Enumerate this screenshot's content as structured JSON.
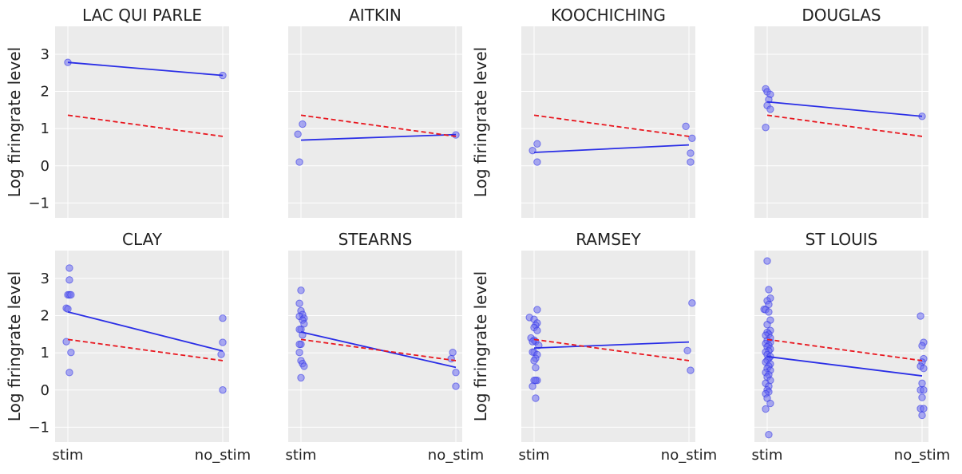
{
  "colors": {
    "panel_bg": "#ebebeb",
    "grid": "#ffffff",
    "fit_line": "#2a2ee6",
    "points": "#6b6bf0",
    "pooled_line": "#e8171f",
    "text": "#222222"
  },
  "chart_data": [
    {
      "type": "scatter",
      "title": "LAC QUI PARLE",
      "ylabel": "Log firingrate level",
      "categories": [
        "stim",
        "no_stim"
      ],
      "ylim": [
        -1.4,
        3.75
      ],
      "yticks": [
        -1,
        0,
        1,
        2,
        3
      ],
      "grid": true,
      "show_ylabel": true,
      "show_yticks": true,
      "show_xticks": false,
      "points": [
        {
          "x": 0,
          "y": 2.78
        },
        {
          "x": 1,
          "y": 2.43
        }
      ],
      "fit_line": [
        2.78,
        2.43
      ],
      "pooled_line": [
        1.36,
        0.79
      ]
    },
    {
      "type": "scatter",
      "title": "AITKIN",
      "ylabel": "",
      "categories": [
        "stim",
        "no_stim"
      ],
      "ylim": [
        -1.4,
        3.75
      ],
      "yticks": [
        -1,
        0,
        1,
        2,
        3
      ],
      "grid": true,
      "show_ylabel": false,
      "show_yticks": false,
      "show_xticks": false,
      "points": [
        {
          "x": -0.02,
          "y": 0.85
        },
        {
          "x": 0.01,
          "y": 1.12
        },
        {
          "x": -0.01,
          "y": 0.1
        },
        {
          "x": 1.0,
          "y": 0.83
        }
      ],
      "fit_line": [
        0.69,
        0.84
      ],
      "pooled_line": [
        1.36,
        0.79
      ]
    },
    {
      "type": "scatter",
      "title": "KOOCHICHING",
      "ylabel": "Log firingrate level",
      "categories": [
        "stim",
        "no_stim"
      ],
      "ylim": [
        -1.4,
        3.75
      ],
      "yticks": [
        -1,
        0,
        1,
        2,
        3
      ],
      "grid": true,
      "show_ylabel": true,
      "show_yticks": false,
      "show_xticks": false,
      "points": [
        {
          "x": 0.02,
          "y": 0.59
        },
        {
          "x": -0.01,
          "y": 0.41
        },
        {
          "x": 0.02,
          "y": 0.1
        },
        {
          "x": 0.98,
          "y": 1.06
        },
        {
          "x": 1.02,
          "y": 0.74
        },
        {
          "x": 1.01,
          "y": 0.34
        },
        {
          "x": 1.01,
          "y": 0.1
        }
      ],
      "fit_line": [
        0.36,
        0.56
      ],
      "pooled_line": [
        1.36,
        0.79
      ]
    },
    {
      "type": "scatter",
      "title": "DOUGLAS",
      "ylabel": "",
      "categories": [
        "stim",
        "no_stim"
      ],
      "ylim": [
        -1.4,
        3.75
      ],
      "yticks": [
        -1,
        0,
        1,
        2,
        3
      ],
      "grid": true,
      "show_ylabel": false,
      "show_yticks": false,
      "show_xticks": false,
      "points": [
        {
          "x": -0.01,
          "y": 2.07
        },
        {
          "x": 0.0,
          "y": 1.99
        },
        {
          "x": 0.02,
          "y": 1.92
        },
        {
          "x": 0.01,
          "y": 1.78
        },
        {
          "x": 0.0,
          "y": 1.62
        },
        {
          "x": 0.02,
          "y": 1.52
        },
        {
          "x": -0.01,
          "y": 1.03
        },
        {
          "x": 1.0,
          "y": 1.33
        }
      ],
      "fit_line": [
        1.72,
        1.33
      ],
      "pooled_line": [
        1.36,
        0.79
      ]
    },
    {
      "type": "scatter",
      "title": "CLAY",
      "ylabel": "Log firingrate level",
      "categories": [
        "stim",
        "no_stim"
      ],
      "ylim": [
        -1.4,
        3.75
      ],
      "yticks": [
        -1,
        0,
        1,
        2,
        3
      ],
      "grid": true,
      "show_ylabel": true,
      "show_yticks": true,
      "show_xticks": true,
      "points": [
        {
          "x": 0.01,
          "y": 3.28
        },
        {
          "x": 0.01,
          "y": 2.96
        },
        {
          "x": 0.0,
          "y": 2.56
        },
        {
          "x": 0.01,
          "y": 2.56
        },
        {
          "x": 0.02,
          "y": 2.56
        },
        {
          "x": -0.01,
          "y": 2.2
        },
        {
          "x": 0.0,
          "y": 2.18
        },
        {
          "x": -0.01,
          "y": 1.3
        },
        {
          "x": 0.02,
          "y": 1.01
        },
        {
          "x": 0.01,
          "y": 0.47
        },
        {
          "x": 1.0,
          "y": 1.93
        },
        {
          "x": 1.0,
          "y": 1.28
        },
        {
          "x": 0.99,
          "y": 0.96
        },
        {
          "x": 1.0,
          "y": 0.0
        }
      ],
      "fit_line": [
        2.1,
        1.05
      ],
      "pooled_line": [
        1.36,
        0.79
      ]
    },
    {
      "type": "scatter",
      "title": "STEARNS",
      "ylabel": "",
      "categories": [
        "stim",
        "no_stim"
      ],
      "ylim": [
        -1.4,
        3.75
      ],
      "yticks": [
        -1,
        0,
        1,
        2,
        3
      ],
      "grid": true,
      "show_ylabel": false,
      "show_yticks": false,
      "show_xticks": true,
      "points": [
        {
          "x": 0.0,
          "y": 2.68
        },
        {
          "x": -0.01,
          "y": 2.33
        },
        {
          "x": 0.0,
          "y": 2.13
        },
        {
          "x": 0.01,
          "y": 2.03
        },
        {
          "x": -0.01,
          "y": 1.98
        },
        {
          "x": 0.02,
          "y": 1.93
        },
        {
          "x": 0.01,
          "y": 1.88
        },
        {
          "x": 0.02,
          "y": 1.78
        },
        {
          "x": 0.0,
          "y": 1.63
        },
        {
          "x": -0.01,
          "y": 1.63
        },
        {
          "x": 0.01,
          "y": 1.48
        },
        {
          "x": 0.0,
          "y": 1.23
        },
        {
          "x": -0.01,
          "y": 1.23
        },
        {
          "x": -0.01,
          "y": 1.01
        },
        {
          "x": 0.0,
          "y": 0.79
        },
        {
          "x": 0.01,
          "y": 0.71
        },
        {
          "x": 0.02,
          "y": 0.64
        },
        {
          "x": 0.0,
          "y": 0.33
        },
        {
          "x": 0.98,
          "y": 1.01
        },
        {
          "x": 0.97,
          "y": 0.84
        },
        {
          "x": 1.0,
          "y": 0.47
        },
        {
          "x": 1.0,
          "y": 0.1
        }
      ],
      "fit_line": [
        1.56,
        0.61
      ],
      "pooled_line": [
        1.36,
        0.79
      ]
    },
    {
      "type": "scatter",
      "title": "RAMSEY",
      "ylabel": "Log firingrate level",
      "categories": [
        "stim",
        "no_stim"
      ],
      "ylim": [
        -1.4,
        3.75
      ],
      "yticks": [
        -1,
        0,
        1,
        2,
        3
      ],
      "grid": true,
      "show_ylabel": true,
      "show_yticks": false,
      "show_xticks": true,
      "points": [
        {
          "x": 0.02,
          "y": 2.16
        },
        {
          "x": -0.03,
          "y": 1.95
        },
        {
          "x": 0.0,
          "y": 1.9
        },
        {
          "x": 0.02,
          "y": 1.8
        },
        {
          "x": 0.01,
          "y": 1.74
        },
        {
          "x": 0.0,
          "y": 1.68
        },
        {
          "x": 0.02,
          "y": 1.6
        },
        {
          "x": -0.02,
          "y": 1.4
        },
        {
          "x": 0.0,
          "y": 1.34
        },
        {
          "x": 0.01,
          "y": 1.3
        },
        {
          "x": -0.01,
          "y": 1.3
        },
        {
          "x": 0.03,
          "y": 1.2
        },
        {
          "x": 0.0,
          "y": 1.02
        },
        {
          "x": -0.01,
          "y": 1.02
        },
        {
          "x": 0.02,
          "y": 0.95
        },
        {
          "x": 0.01,
          "y": 0.85
        },
        {
          "x": 0.0,
          "y": 0.79
        },
        {
          "x": 0.01,
          "y": 0.6
        },
        {
          "x": 0.02,
          "y": 0.26
        },
        {
          "x": 0.0,
          "y": 0.26
        },
        {
          "x": 0.01,
          "y": 0.26
        },
        {
          "x": -0.01,
          "y": 0.1
        },
        {
          "x": 0.01,
          "y": -0.22
        },
        {
          "x": 1.02,
          "y": 2.34
        },
        {
          "x": 0.99,
          "y": 1.06
        },
        {
          "x": 1.01,
          "y": 0.53
        }
      ],
      "fit_line": [
        1.13,
        1.29
      ],
      "pooled_line": [
        1.36,
        0.79
      ]
    },
    {
      "type": "scatter",
      "title": "ST LOUIS",
      "ylabel": "",
      "categories": [
        "stim",
        "no_stim"
      ],
      "ylim": [
        -1.4,
        3.75
      ],
      "yticks": [
        -1,
        0,
        1,
        2,
        3
      ],
      "grid": true,
      "show_ylabel": false,
      "show_yticks": false,
      "show_xticks": true,
      "points": [
        {
          "x": 0.0,
          "y": 3.47
        },
        {
          "x": 0.01,
          "y": 2.7
        },
        {
          "x": 0.02,
          "y": 2.47
        },
        {
          "x": 0.0,
          "y": 2.4
        },
        {
          "x": 0.01,
          "y": 2.3
        },
        {
          "x": -0.02,
          "y": 2.17
        },
        {
          "x": -0.01,
          "y": 2.16
        },
        {
          "x": 0.01,
          "y": 2.1
        },
        {
          "x": 0.02,
          "y": 1.88
        },
        {
          "x": 0.0,
          "y": 1.76
        },
        {
          "x": 0.02,
          "y": 1.6
        },
        {
          "x": 0.0,
          "y": 1.55
        },
        {
          "x": 0.01,
          "y": 1.5
        },
        {
          "x": -0.01,
          "y": 1.47
        },
        {
          "x": 0.02,
          "y": 1.4
        },
        {
          "x": 0.0,
          "y": 1.33
        },
        {
          "x": 0.02,
          "y": 1.28
        },
        {
          "x": -0.01,
          "y": 1.25
        },
        {
          "x": 0.01,
          "y": 1.2
        },
        {
          "x": 0.0,
          "y": 1.16
        },
        {
          "x": 0.02,
          "y": 1.1
        },
        {
          "x": 0.01,
          "y": 1.05
        },
        {
          "x": -0.01,
          "y": 1.02
        },
        {
          "x": 0.0,
          "y": 0.95
        },
        {
          "x": 0.02,
          "y": 0.9
        },
        {
          "x": 0.01,
          "y": 0.85
        },
        {
          "x": 0.0,
          "y": 0.8
        },
        {
          "x": -0.01,
          "y": 0.75
        },
        {
          "x": 0.02,
          "y": 0.7
        },
        {
          "x": 0.01,
          "y": 0.64
        },
        {
          "x": 0.0,
          "y": 0.58
        },
        {
          "x": 0.02,
          "y": 0.53
        },
        {
          "x": -0.01,
          "y": 0.47
        },
        {
          "x": 0.01,
          "y": 0.41
        },
        {
          "x": 0.0,
          "y": 0.35
        },
        {
          "x": 0.02,
          "y": 0.26
        },
        {
          "x": -0.01,
          "y": 0.18
        },
        {
          "x": 0.01,
          "y": 0.1
        },
        {
          "x": 0.0,
          "y": 0.0
        },
        {
          "x": 0.01,
          "y": -0.05
        },
        {
          "x": -0.01,
          "y": -0.1
        },
        {
          "x": 0.0,
          "y": -0.22
        },
        {
          "x": 0.02,
          "y": -0.36
        },
        {
          "x": -0.01,
          "y": -0.51
        },
        {
          "x": 0.01,
          "y": -1.2
        },
        {
          "x": 0.99,
          "y": 1.99
        },
        {
          "x": 1.01,
          "y": 1.28
        },
        {
          "x": 1.0,
          "y": 1.19
        },
        {
          "x": 1.01,
          "y": 0.84
        },
        {
          "x": 1.0,
          "y": 0.75
        },
        {
          "x": 0.99,
          "y": 0.64
        },
        {
          "x": 1.01,
          "y": 0.58
        },
        {
          "x": 1.0,
          "y": 0.18
        },
        {
          "x": 0.99,
          "y": 0.0
        },
        {
          "x": 1.01,
          "y": 0.0
        },
        {
          "x": 1.0,
          "y": -0.2
        },
        {
          "x": 0.99,
          "y": -0.5
        },
        {
          "x": 1.01,
          "y": -0.5
        },
        {
          "x": 1.0,
          "y": -0.68
        }
      ],
      "fit_line": [
        0.9,
        0.38
      ],
      "pooled_line": [
        1.36,
        0.79
      ]
    }
  ]
}
